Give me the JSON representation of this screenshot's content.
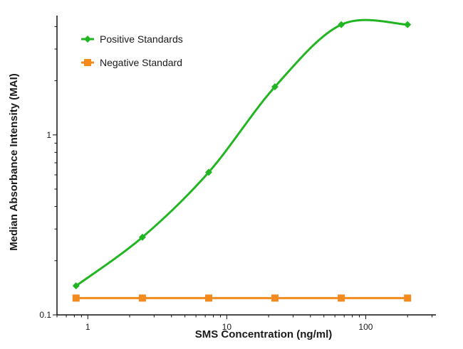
{
  "chart_data": {
    "type": "line",
    "xlabel": "SMS Concentration (ng/ml)",
    "ylabel": "Median Absorbance Intensity (MAI)",
    "xscale": "log",
    "yscale": "log",
    "xlim": [
      0.6,
      320
    ],
    "ylim": [
      0.1,
      4.6
    ],
    "x_ticks": [
      1,
      10,
      100
    ],
    "x_tick_labels": [
      "1",
      "10",
      "100"
    ],
    "y_ticks": [
      0.1,
      1
    ],
    "y_tick_labels": [
      "0.1",
      "1"
    ],
    "grid": false,
    "legend_position": "top-left",
    "series": [
      {
        "name": "Positive Standards",
        "color": "#22b522",
        "marker": "diamond",
        "curve": "smooth",
        "x": [
          0.823,
          2.47,
          7.41,
          22.2,
          66.7,
          200
        ],
        "y": [
          0.145,
          0.27,
          0.62,
          1.85,
          4.1,
          4.1
        ]
      },
      {
        "name": "Negative Standard",
        "color": "#f28a1e",
        "marker": "square",
        "curve": "straight",
        "x": [
          0.823,
          2.47,
          7.41,
          22.2,
          66.7,
          200
        ],
        "y": [
          0.124,
          0.124,
          0.124,
          0.124,
          0.124,
          0.124
        ]
      }
    ]
  }
}
